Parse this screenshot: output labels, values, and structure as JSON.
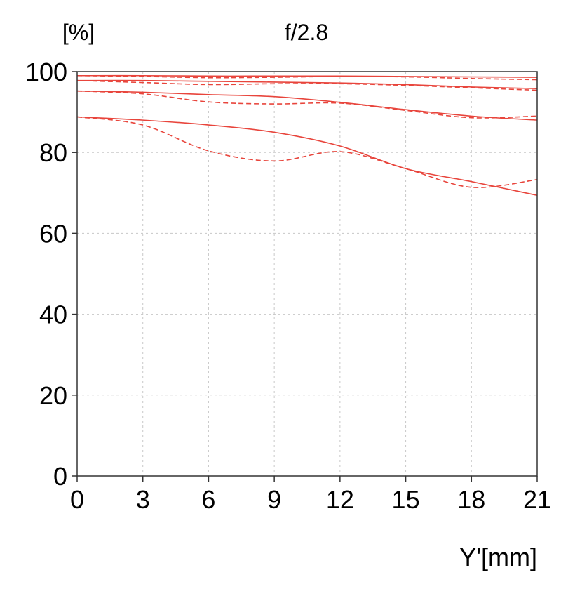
{
  "chart_data": {
    "type": "line",
    "title": "f/2.8",
    "ylabel": "[%]",
    "xlabel": "Y'[mm]",
    "xlim": [
      0,
      21
    ],
    "ylim": [
      0,
      100
    ],
    "xticks": [
      "0",
      "3",
      "6",
      "9",
      "12",
      "15",
      "18",
      "21"
    ],
    "yticks": [
      "0",
      "20",
      "40",
      "60",
      "80",
      "100"
    ],
    "grid": true,
    "line_color": "#e8453c",
    "grid_color": "#c8c8c8",
    "series": [
      {
        "style": "solid",
        "x": [
          0,
          3,
          6,
          9,
          12,
          15,
          18,
          21
        ],
        "y": [
          99.0,
          99.0,
          98.9,
          98.9,
          98.9,
          98.8,
          98.7,
          98.6
        ]
      },
      {
        "style": "dashed",
        "x": [
          0,
          3,
          6,
          9,
          12,
          15,
          18,
          21
        ],
        "y": [
          99.0,
          98.8,
          98.5,
          98.6,
          98.8,
          98.7,
          98.3,
          98.0
        ]
      },
      {
        "style": "solid",
        "x": [
          0,
          3,
          6,
          9,
          12,
          15,
          18,
          21
        ],
        "y": [
          97.8,
          97.8,
          97.6,
          97.4,
          97.2,
          96.8,
          96.2,
          95.8
        ]
      },
      {
        "style": "dashed",
        "x": [
          0,
          3,
          6,
          9,
          12,
          15,
          18,
          21
        ],
        "y": [
          97.8,
          97.3,
          96.8,
          97.0,
          97.0,
          96.6,
          96.0,
          95.4
        ]
      },
      {
        "style": "solid",
        "x": [
          0,
          3,
          6,
          9,
          12,
          15,
          18,
          21
        ],
        "y": [
          95.2,
          94.9,
          94.3,
          93.8,
          92.4,
          90.6,
          89.0,
          88.0
        ]
      },
      {
        "style": "dashed",
        "x": [
          0,
          3,
          6,
          9,
          12,
          15,
          18,
          21
        ],
        "y": [
          95.2,
          94.5,
          92.5,
          92.0,
          92.2,
          90.4,
          88.6,
          89.0
        ]
      },
      {
        "style": "solid",
        "x": [
          0,
          3,
          6,
          9,
          12,
          15,
          18,
          21
        ],
        "y": [
          88.8,
          88.0,
          86.8,
          85.0,
          81.6,
          76.0,
          72.8,
          69.4
        ]
      },
      {
        "style": "dashed",
        "x": [
          0,
          3,
          6,
          9,
          12,
          15,
          18,
          21
        ],
        "y": [
          88.8,
          86.8,
          80.4,
          77.9,
          80.2,
          76.0,
          71.4,
          73.3
        ]
      }
    ]
  }
}
